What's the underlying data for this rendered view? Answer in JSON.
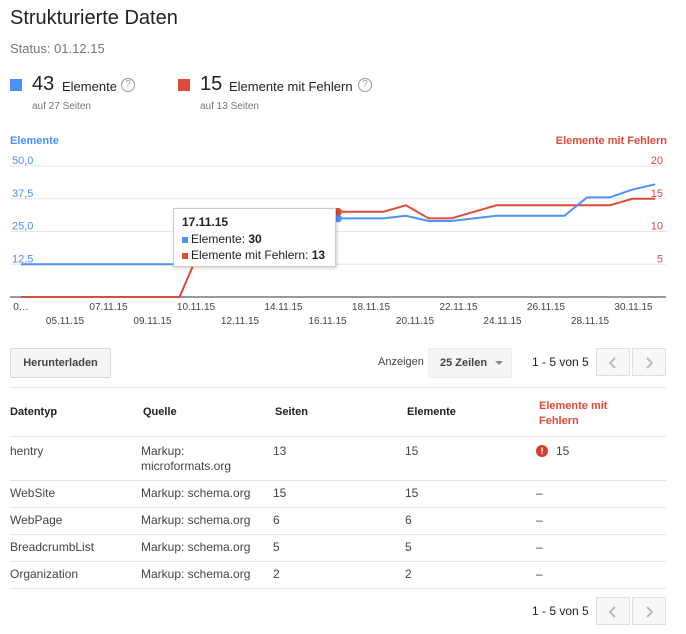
{
  "page": {
    "title": "Strukturierte Daten",
    "status": "Status: 01.12.15"
  },
  "summary": {
    "items": {
      "count": "43",
      "label": "Elemente",
      "sub": "auf 27 Seiten",
      "help": "?"
    },
    "errors": {
      "count": "15",
      "label": "Elemente mit Fehlern",
      "sub": "auf 13 Seiten",
      "help": "?"
    }
  },
  "colors": {
    "blue": "#4d90fe",
    "red": "#dd4b39"
  },
  "chart_data": {
    "type": "line",
    "left_axis_title": "Elemente",
    "right_axis_title": "Elemente mit Fehlern",
    "left_ticks": [
      "50,0",
      "37,5",
      "25,0",
      "12,5"
    ],
    "right_ticks": [
      "20",
      "15",
      "10",
      "5"
    ],
    "left_ylim": [
      0,
      50
    ],
    "right_ylim": [
      0,
      20
    ],
    "x_labels_top": [
      "0…",
      "07.11.15",
      "10.11.15",
      "14.11.15",
      "18.11.15",
      "22.11.15",
      "26.11.15",
      "30.11.15"
    ],
    "x_labels_bottom": [
      "05.11.15",
      "09.11.15",
      "12.11.15",
      "16.11.15",
      "20.11.15",
      "24.11.15",
      "28.11.15"
    ],
    "grid": true,
    "series": [
      {
        "name": "Elemente",
        "axis": "left",
        "values": [
          12.5,
          12.5,
          12.5,
          12.5,
          12.5,
          12.5,
          12.5,
          12.5,
          25,
          30,
          30,
          30,
          30,
          30,
          30,
          30,
          30,
          31,
          29,
          29,
          30,
          31,
          31,
          31,
          31,
          38,
          38,
          41,
          43
        ]
      },
      {
        "name": "Elemente mit Fehlern",
        "axis": "right",
        "values": [
          0,
          0,
          0,
          0,
          0,
          0,
          0,
          0,
          8,
          13,
          13,
          13,
          13,
          13,
          13,
          13,
          13,
          14,
          12,
          12,
          13,
          14,
          14,
          14,
          14,
          14,
          14,
          15,
          15
        ]
      }
    ],
    "tooltip": {
      "date": "17.11.15",
      "rows": [
        {
          "label": "Elemente: ",
          "value": "30"
        },
        {
          "label": "Elemente mit Fehlern: ",
          "value": "13"
        }
      ]
    }
  },
  "toolbar": {
    "download": "Herunterladen",
    "show_label": "Anzeigen",
    "rows_value": "25 Zeilen",
    "pager": "1 - 5 von 5"
  },
  "table": {
    "headers": [
      "Datentyp",
      "Quelle",
      "Seiten",
      "Elemente",
      "Elemente mit",
      "Fehlern"
    ],
    "rows": [
      {
        "type": "hentry",
        "source1": "Markup:",
        "source2": "microformats.org",
        "pages": "13",
        "items": "15",
        "errors": "15"
      },
      {
        "type": "WebSite",
        "source1": "Markup: schema.org",
        "pages": "15",
        "items": "15",
        "errors": "–"
      },
      {
        "type": "WebPage",
        "source1": "Markup: schema.org",
        "pages": "6",
        "items": "6",
        "errors": "–"
      },
      {
        "type": "BreadcrumbList",
        "source1": "Markup: schema.org",
        "pages": "5",
        "items": "5",
        "errors": "–"
      },
      {
        "type": "Organization",
        "source1": "Markup: schema.org",
        "pages": "2",
        "items": "2",
        "errors": "–"
      }
    ]
  }
}
